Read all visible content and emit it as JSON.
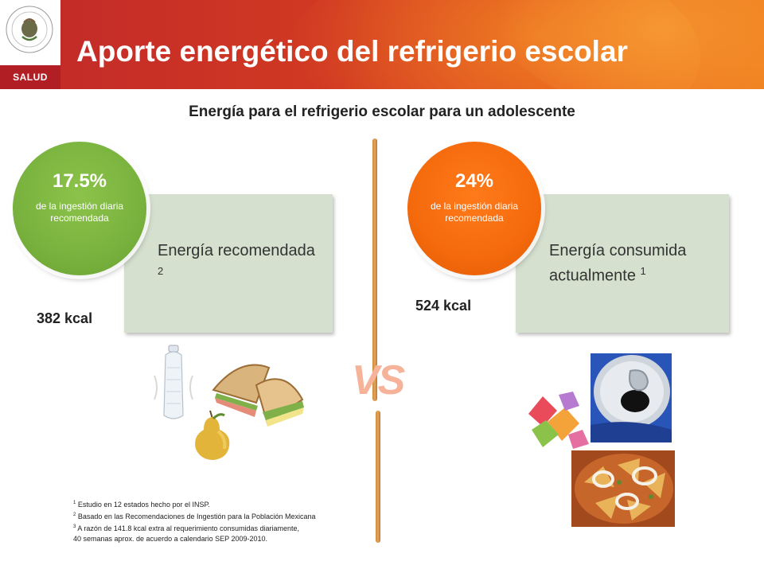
{
  "header": {
    "title": "Aporte energético del refrigerio escolar",
    "logo_label": "SALUD"
  },
  "subtitle": "Energía para el refrigerio escolar para un adolescente",
  "left_card": {
    "percent": "17.5%",
    "percent_desc": "de la ingestión diaria recomendada",
    "label": "Energía recomendada",
    "label_sup": "2",
    "kcal": "382 kcal"
  },
  "right_card": {
    "percent": "24%",
    "percent_desc": "de la ingestión diaria recomendada",
    "label": "Energía consumida actualmente",
    "label_sup": "1",
    "kcal": "524 kcal"
  },
  "vs": "VS",
  "footnotes": {
    "n1_sup": "1",
    "n1": "Estudio en 12 estados hecho por el INSP.",
    "n2_sup": "2",
    "n2": "Basado en las Recomendaciones de Ingestión para la Población Mexicana",
    "n3_sup": "3",
    "n3": "A razón de 141.8 kcal extra al requerimiento consumidas diariamente,",
    "n3b": "40 semanas aprox. de acuerdo a calendario SEP 2009-2010."
  },
  "colors": {
    "header_red": "#c0282a",
    "green": "#79b23e",
    "orange": "#f46a0c",
    "card_bg": "#d5e0ce"
  },
  "icons": [
    "mexico-seal-icon",
    "water-bottle-icon",
    "sandwich-icon",
    "pear-icon",
    "candy-icon",
    "soda-can-icon",
    "chilaquiles-icon"
  ]
}
